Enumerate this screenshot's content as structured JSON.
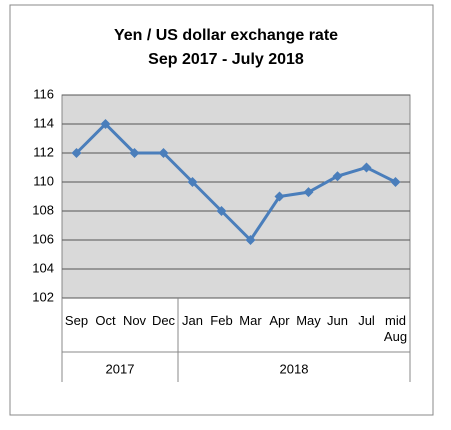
{
  "chart_data": {
    "type": "line",
    "title": "Yen / US dollar exchange rate",
    "subtitle": "Sep 2017 - July 2018",
    "categories": [
      "Sep",
      "Oct",
      "Nov",
      "Dec",
      "Jan",
      "Feb",
      "Mar",
      "Apr",
      "May",
      "Jun",
      "Jul",
      "mid\nAug"
    ],
    "years": [
      "2017",
      null,
      null,
      null,
      "2018",
      null,
      null,
      null,
      null,
      null,
      null,
      null
    ],
    "values": [
      112,
      114,
      112,
      112,
      110,
      108,
      106,
      109,
      109.3,
      110.4,
      111,
      110
    ],
    "color": "#4a7ebb",
    "ylim": [
      102,
      116
    ],
    "yticks": [
      102,
      104,
      106,
      108,
      110,
      112,
      114,
      116
    ],
    "grid": true
  }
}
